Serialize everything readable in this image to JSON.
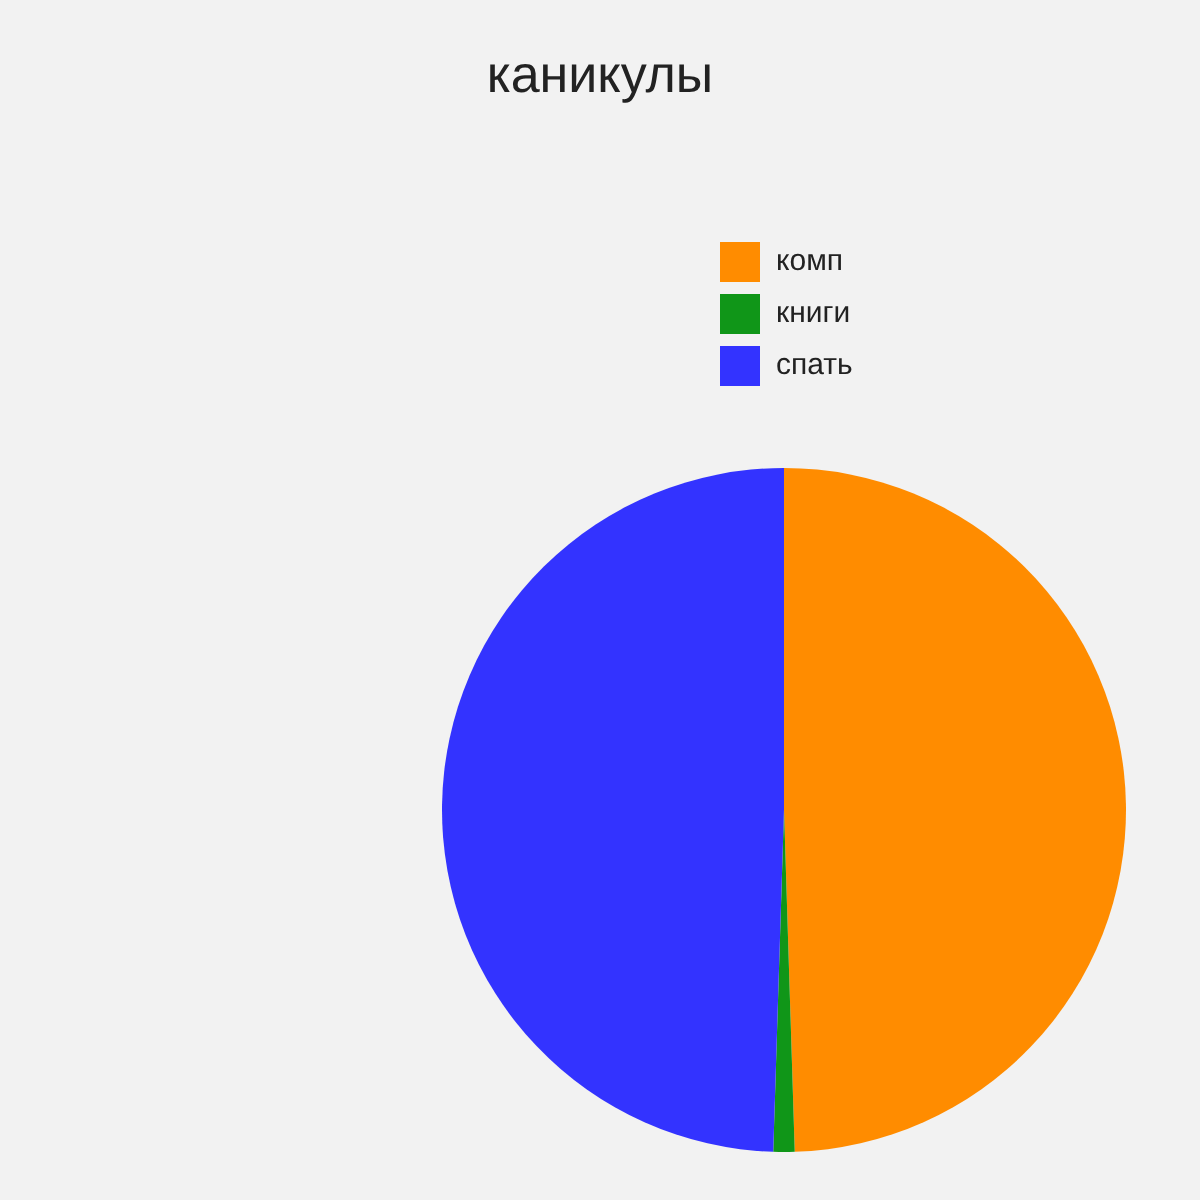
{
  "chart_data": {
    "type": "pie",
    "title": "каникулы",
    "categories": [
      "комп",
      "книги",
      "спать"
    ],
    "values": [
      49.5,
      1,
      49.5
    ],
    "colors": [
      "#ff8c00",
      "#109618",
      "#3333ff"
    ],
    "legend": "top right"
  }
}
